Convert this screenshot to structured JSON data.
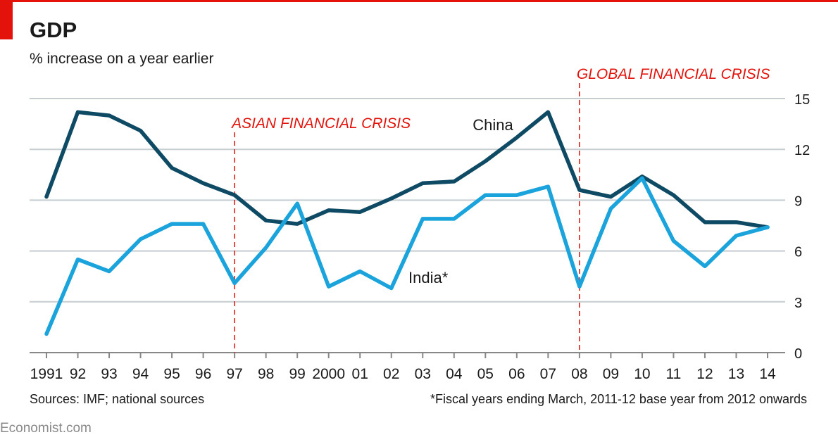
{
  "chart_data": {
    "type": "line",
    "title": "GDP",
    "subtitle": "% increase on a year earlier",
    "x": [
      1991,
      1992,
      1993,
      1994,
      1995,
      1996,
      1997,
      1998,
      1999,
      2000,
      2001,
      2002,
      2003,
      2004,
      2005,
      2006,
      2007,
      2008,
      2009,
      2010,
      2011,
      2012,
      2013,
      2014
    ],
    "tick_labels": [
      "1991",
      "92",
      "93",
      "94",
      "95",
      "96",
      "97",
      "98",
      "99",
      "2000",
      "01",
      "02",
      "03",
      "04",
      "05",
      "06",
      "07",
      "08",
      "09",
      "10",
      "11",
      "12",
      "13",
      "14"
    ],
    "ylim": [
      0,
      15
    ],
    "yticks": [
      "0",
      "3",
      "6",
      "9",
      "12",
      "15"
    ],
    "grid": true,
    "series": [
      {
        "name": "China",
        "color": "#0f4a64",
        "values": [
          9.2,
          14.2,
          14.0,
          13.1,
          10.9,
          10.0,
          9.3,
          7.8,
          7.6,
          8.4,
          8.3,
          9.1,
          10.0,
          10.1,
          11.3,
          12.7,
          14.2,
          9.6,
          9.2,
          10.4,
          9.3,
          7.7,
          7.7,
          7.4
        ]
      },
      {
        "name": "India*",
        "color": "#1ba3dc",
        "values": [
          1.1,
          5.5,
          4.8,
          6.7,
          7.6,
          7.6,
          4.1,
          6.2,
          8.8,
          3.9,
          4.8,
          3.8,
          7.9,
          7.9,
          9.3,
          9.3,
          9.8,
          3.9,
          8.5,
          10.3,
          6.6,
          5.1,
          6.9,
          7.4
        ]
      }
    ],
    "annotations": [
      {
        "text": "ASIAN FINANCIAL CRISIS",
        "x": 1997,
        "color": "#e3120b"
      },
      {
        "text": "GLOBAL FINANCIAL CRISIS",
        "x": 2008,
        "color": "#e3120b"
      }
    ],
    "colors": {
      "accent": "#e3120b",
      "grid": "#c5cdd1",
      "axis": "#888888",
      "text": "#1a1a1a"
    }
  },
  "footer": {
    "sources": "Sources: IMF; national sources",
    "note": "*Fiscal years ending March, 2011-12 base year from 2012 onwards",
    "brand": "Economist.com"
  }
}
